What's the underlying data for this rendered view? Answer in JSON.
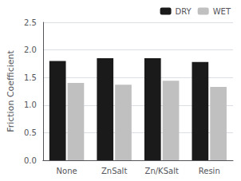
{
  "chart_data": {
    "type": "bar",
    "categories": [
      "None",
      "ZnSalt",
      "Zn/KSalt",
      "Resin"
    ],
    "series": [
      {
        "name": "DRY",
        "color": "#1a1a1a",
        "values": [
          1.8,
          1.85,
          1.85,
          1.78
        ]
      },
      {
        "name": "WET",
        "color": "#c0c0c0",
        "values": [
          1.4,
          1.37,
          1.44,
          1.33
        ]
      }
    ],
    "ylabel": "Friction Coefficient",
    "ylim": [
      0.0,
      2.5
    ],
    "yticks": [
      {
        "value": 0,
        "label": "0.0"
      },
      0.5,
      {
        "value": 1,
        "label": "1.0"
      },
      1.5,
      {
        "value": 2,
        "label": "2.0"
      },
      2.5
    ],
    "grid": true,
    "legend": "upper right"
  }
}
